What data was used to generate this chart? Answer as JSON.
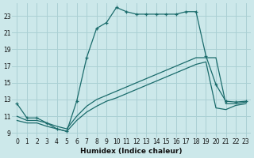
{
  "xlabel": "Humidex (Indice chaleur)",
  "bg_color": "#cce8ea",
  "grid_color": "#aad0d4",
  "line_color": "#1a6b6b",
  "xlim": [
    -0.5,
    23.5
  ],
  "ylim": [
    8.5,
    24.5
  ],
  "yticks": [
    9,
    11,
    13,
    15,
    17,
    19,
    21,
    23
  ],
  "xticks": [
    0,
    1,
    2,
    3,
    4,
    5,
    6,
    7,
    8,
    9,
    10,
    11,
    12,
    13,
    14,
    15,
    16,
    17,
    18,
    19,
    20,
    21,
    22,
    23
  ],
  "curve1_x": [
    0,
    1,
    2,
    3,
    4,
    5,
    6,
    7,
    8,
    9,
    10,
    11,
    12,
    13,
    14,
    15,
    16,
    17,
    18,
    19,
    20,
    21,
    22,
    23
  ],
  "curve1_y": [
    12.5,
    10.8,
    10.8,
    10.2,
    9.5,
    9.2,
    12.8,
    18.0,
    21.5,
    22.2,
    24.0,
    23.5,
    23.2,
    23.2,
    23.2,
    23.2,
    23.2,
    23.5,
    23.5,
    18.2,
    14.8,
    12.8,
    12.7,
    12.8
  ],
  "curve2_x": [
    0,
    1,
    2,
    3,
    4,
    5,
    6,
    7,
    8,
    9,
    10,
    11,
    12,
    13,
    14,
    15,
    16,
    17,
    18,
    19,
    20,
    21,
    22,
    23
  ],
  "curve2_y": [
    11.0,
    10.5,
    10.5,
    10.2,
    9.8,
    9.5,
    11.0,
    12.2,
    13.0,
    13.5,
    14.0,
    14.5,
    15.0,
    15.5,
    16.0,
    16.5,
    17.0,
    17.5,
    18.0,
    18.0,
    18.0,
    12.5,
    12.5,
    12.7
  ],
  "curve3_x": [
    0,
    1,
    2,
    3,
    4,
    5,
    6,
    7,
    8,
    9,
    10,
    11,
    12,
    13,
    14,
    15,
    16,
    17,
    18,
    19,
    20,
    21,
    22,
    23
  ],
  "curve3_y": [
    10.5,
    10.2,
    10.2,
    9.8,
    9.5,
    9.2,
    10.5,
    11.5,
    12.2,
    12.8,
    13.2,
    13.7,
    14.2,
    14.7,
    15.2,
    15.7,
    16.2,
    16.7,
    17.2,
    17.5,
    12.0,
    11.8,
    12.3,
    12.5
  ]
}
